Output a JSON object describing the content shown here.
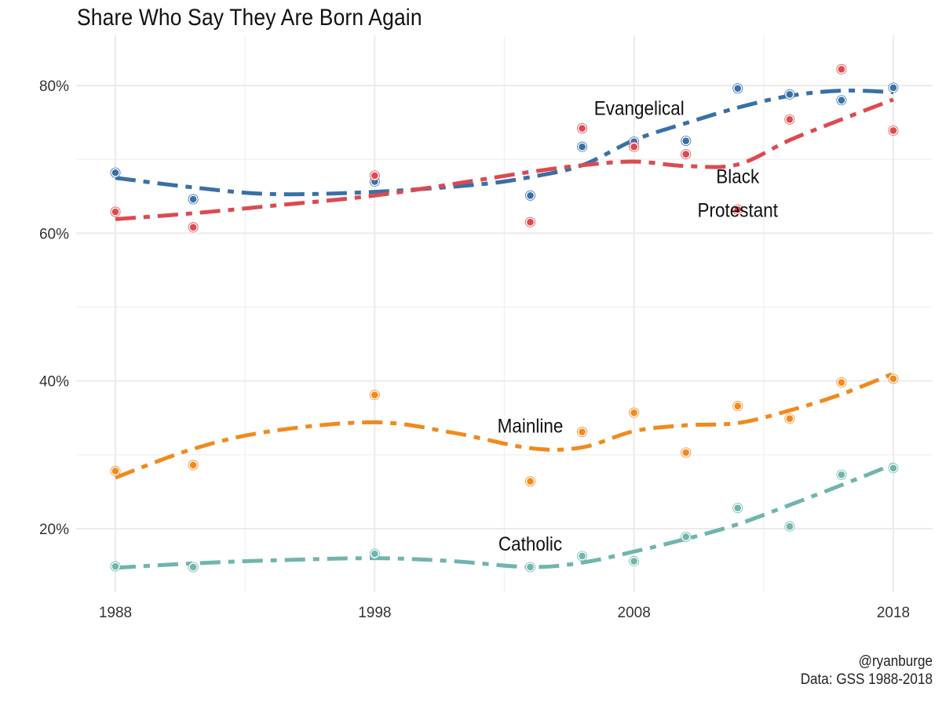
{
  "chart_data": {
    "type": "line",
    "title": "Share Who Say They Are Born Again",
    "xlabel": "",
    "ylabel": "",
    "caption": [
      "@ryanburge",
      "Data: GSS 1988-2018"
    ],
    "x": [
      1988,
      1991,
      1998,
      2004,
      2006,
      2008,
      2010,
      2012,
      2014,
      2016,
      2018
    ],
    "xlim": [
      1988,
      2018
    ],
    "ylim": [
      11,
      85
    ],
    "x_ticks": [
      1988,
      1998,
      2008,
      2018
    ],
    "x_tick_labels": [
      "1988",
      "1998",
      "2008",
      "2018"
    ],
    "y_ticks": [
      20,
      40,
      60,
      80
    ],
    "y_tick_labels": [
      "20%",
      "40%",
      "60%",
      "80%"
    ],
    "grid": true,
    "legend": "none (direct labels)",
    "series": [
      {
        "name": "Evangelical",
        "color": "#3a6fa6",
        "values": [
          68.2,
          64.6,
          67.0,
          65.1,
          71.7,
          72.4,
          72.5,
          79.6,
          78.8,
          78.0,
          79.7
        ],
        "smooth_x": [
          1988,
          1991,
          1994,
          1998,
          2002,
          2004,
          2006,
          2008,
          2010,
          2012,
          2014,
          2016,
          2018
        ],
        "smooth": [
          67.5,
          66.2,
          65.3,
          65.6,
          66.6,
          67.6,
          69.2,
          72.6,
          74.9,
          77.0,
          78.6,
          79.3,
          79.1
        ],
        "label": "Evangelical"
      },
      {
        "name": "Black Protestant",
        "color": "#dc4a4f",
        "values": [
          62.9,
          60.8,
          67.8,
          61.5,
          74.2,
          71.7,
          70.7,
          63.2,
          75.4,
          82.2,
          73.9
        ],
        "smooth_x": [
          1988,
          1991,
          1994,
          1998,
          2002,
          2004,
          2006,
          2008,
          2010,
          2012,
          2014,
          2016,
          2018
        ],
        "smooth": [
          61.9,
          62.7,
          63.7,
          65.1,
          67.2,
          68.3,
          69.2,
          69.7,
          69.1,
          69.3,
          72.6,
          75.4,
          78.1
        ],
        "label": "Black Protestant"
      },
      {
        "name": "Mainline",
        "color": "#f08a1e",
        "values": [
          27.8,
          28.6,
          38.1,
          26.4,
          33.1,
          35.7,
          30.3,
          36.6,
          34.9,
          39.8,
          40.3
        ],
        "smooth_x": [
          1988,
          1991,
          1994,
          1998,
          2001,
          2004,
          2006,
          2008,
          2010,
          2012,
          2014,
          2016,
          2018
        ],
        "smooth": [
          26.9,
          30.8,
          33.2,
          34.4,
          33.0,
          30.9,
          31.0,
          33.2,
          34.0,
          34.3,
          36.0,
          38.2,
          41.0
        ],
        "label": "Mainline"
      },
      {
        "name": "Catholic",
        "color": "#6fb5ad",
        "values": [
          14.9,
          14.8,
          16.6,
          14.8,
          16.3,
          15.6,
          18.9,
          22.8,
          20.3,
          27.3,
          28.2
        ],
        "smooth_x": [
          1988,
          1991,
          1994,
          1998,
          2001,
          2004,
          2006,
          2008,
          2010,
          2012,
          2014,
          2016,
          2018
        ],
        "smooth": [
          14.7,
          15.3,
          15.7,
          16.0,
          15.6,
          14.8,
          15.4,
          16.9,
          18.6,
          20.6,
          23.2,
          25.9,
          28.7
        ],
        "label": "Catholic"
      }
    ],
    "annotations": [
      {
        "text": "Evangelical",
        "x": 2008.2,
        "y": 76.0
      },
      {
        "text": "Black",
        "x": 2012.0,
        "y": 66.8
      },
      {
        "text": "Protestant",
        "x": 2012.0,
        "y": 62.2
      },
      {
        "text": "Mainline",
        "x": 2004.0,
        "y": 33.0
      },
      {
        "text": "Catholic",
        "x": 2004.0,
        "y": 17.0
      }
    ]
  }
}
